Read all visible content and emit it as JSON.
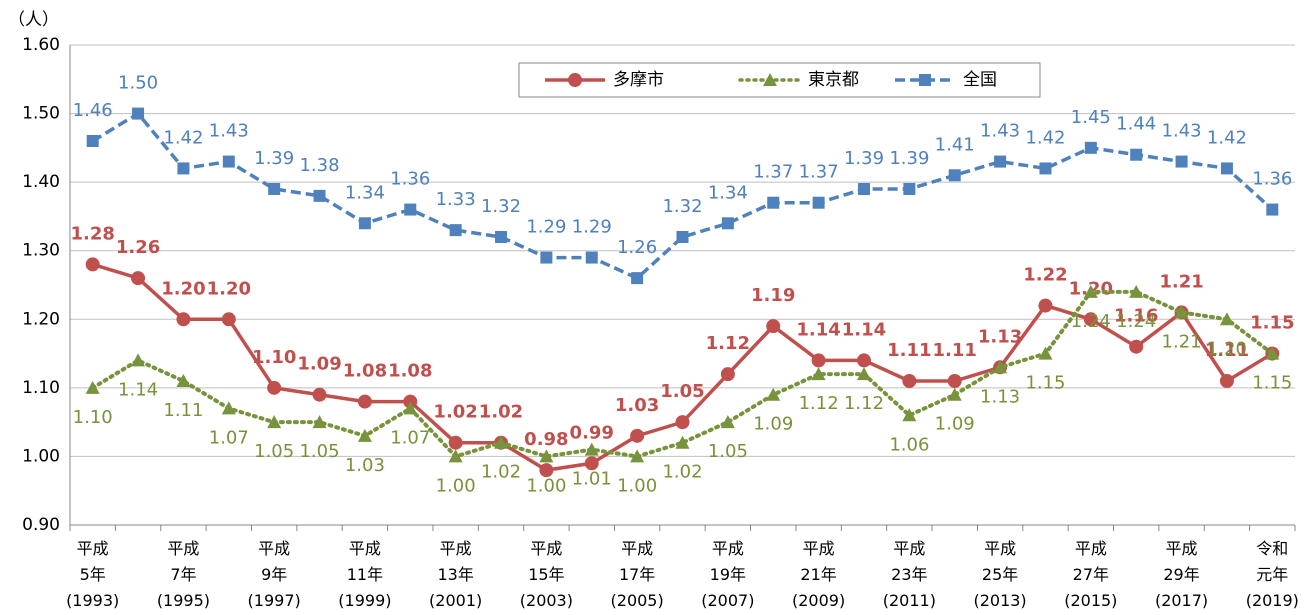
{
  "chart_data": {
    "type": "line",
    "y_label": "（人）",
    "categories": [
      "平成\n5年\n(1993)",
      null,
      "平成\n7年\n(1995)",
      null,
      "平成\n9年\n(1997)",
      null,
      "平成\n11年\n(1999)",
      null,
      "平成\n13年\n(2001)",
      null,
      "平成\n15年\n(2003)",
      null,
      "平成\n17年\n(2005)",
      null,
      "平成\n19年\n(2007)",
      null,
      "平成\n21年\n(2009)",
      null,
      "平成\n23年\n(2011)",
      null,
      "平成\n25年\n(2013)",
      null,
      "平成\n27年\n(2015)",
      null,
      "平成\n29年\n(2017)",
      null,
      "令和\n元年\n(2019)"
    ],
    "ylim": [
      0.9,
      1.6
    ],
    "yticks": [
      {
        "value": 0.9,
        "label": "0.90"
      },
      {
        "value": 1.0,
        "label": "1.00"
      },
      {
        "value": 1.1,
        "label": "1.10"
      },
      {
        "value": 1.2,
        "label": "1.20"
      },
      {
        "value": 1.3,
        "label": "1.30"
      },
      {
        "value": 1.4,
        "label": "1.40"
      },
      {
        "value": 1.5,
        "label": "1.50"
      },
      {
        "value": 1.6,
        "label": "1.60"
      }
    ],
    "grid": true,
    "legend": "top",
    "series": [
      {
        "name": "多摩市",
        "color": "#c0504d",
        "marker": "circle",
        "dash": "solid",
        "values": [
          1.28,
          1.26,
          1.2,
          1.2,
          1.1,
          1.09,
          1.08,
          1.08,
          1.02,
          1.02,
          0.98,
          0.99,
          1.03,
          1.05,
          1.12,
          1.19,
          1.14,
          1.14,
          1.11,
          1.11,
          1.13,
          1.22,
          1.2,
          1.16,
          1.21,
          1.11,
          1.15
        ],
        "value_labels": [
          "1.28",
          "1.26",
          "1.20",
          "1.20",
          "1.10",
          "1.09",
          "1.08",
          "1.08",
          "1.02",
          "1.02",
          "0.98",
          "0.99",
          "1.03",
          "1.05",
          "1.12",
          "1.19",
          "1.14",
          "1.14",
          "1.11",
          "1.11",
          "1.13",
          "1.22",
          "1.20",
          "1.16",
          "1.21",
          "1.11",
          "1.15"
        ]
      },
      {
        "name": "東京都",
        "color": "#77933c",
        "marker": "triangle",
        "dash": "dotted",
        "values": [
          1.1,
          1.14,
          1.11,
          1.07,
          1.05,
          1.05,
          1.03,
          1.07,
          1.0,
          1.02,
          1.0,
          1.01,
          1.0,
          1.02,
          1.05,
          1.09,
          1.12,
          1.12,
          1.06,
          1.09,
          1.13,
          1.15,
          1.24,
          1.24,
          1.21,
          1.2,
          1.15
        ],
        "value_labels": [
          "1.10",
          "1.14",
          "1.11",
          "1.07",
          "1.05",
          "1.05",
          "1.03",
          "1.07",
          "1.00",
          "1.02",
          "1.00",
          "1.01",
          "1.00",
          "1.02",
          "1.05",
          "1.09",
          "1.12",
          "1.12",
          "1.06",
          "1.09",
          "1.13",
          "1.15",
          "1.24",
          "1.24",
          "1.21",
          "1.20",
          "1.15"
        ]
      },
      {
        "name": "全国",
        "color": "#4f81bd",
        "marker": "square",
        "dash": "dashed",
        "values": [
          1.46,
          1.5,
          1.42,
          1.43,
          1.39,
          1.38,
          1.34,
          1.36,
          1.33,
          1.32,
          1.29,
          1.29,
          1.26,
          1.32,
          1.34,
          1.37,
          1.37,
          1.39,
          1.39,
          1.41,
          1.43,
          1.42,
          1.45,
          1.44,
          1.43,
          1.42,
          1.36
        ],
        "value_labels": [
          "1.46",
          "1.50",
          "1.42",
          "1.43",
          "1.39",
          "1.38",
          "1.34",
          "1.36",
          "1.33",
          "1.32",
          "1.29",
          "1.29",
          "1.26",
          "1.32",
          "1.34",
          "1.37",
          "1.37",
          "1.39",
          "1.39",
          "1.41",
          "1.43",
          "1.42",
          "1.45",
          "1.44",
          "1.43",
          "1.42",
          "1.36"
        ]
      }
    ]
  }
}
